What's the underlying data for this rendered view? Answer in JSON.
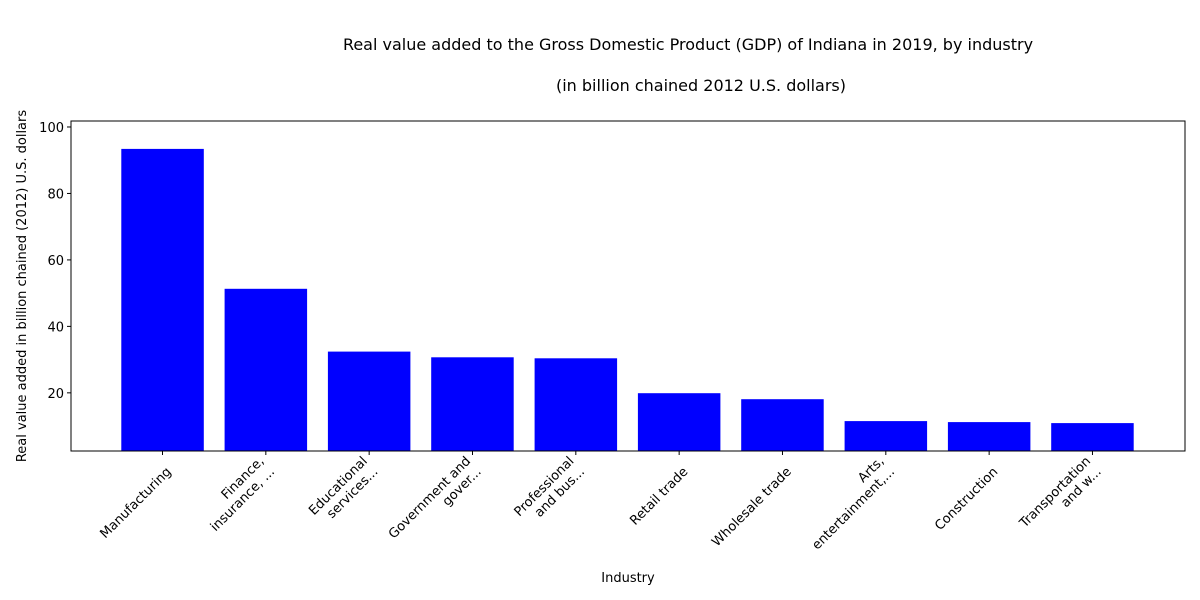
{
  "chart_data": {
    "type": "bar",
    "title": "Real value added to the Gross Domestic Product (GDP) of Indiana in 2019, by industry",
    "subtitle": "(in billion chained 2012 U.S. dollars)",
    "xlabel": "Industry",
    "ylabel": "Real value added in billion chained (2012) U.S. dollars",
    "categories": [
      "Manufacturing",
      "Finance,\ninsurance, ...",
      "Educational\nservices...",
      "Government and\ngover...",
      "Professional\nand bus...",
      "Retail trade",
      "Wholesale trade",
      "Arts,\nentertainment,...",
      "Construction",
      "Transportation\nand w..."
    ],
    "values": [
      93.4,
      51.3,
      32.4,
      30.7,
      30.4,
      19.9,
      18.1,
      11.5,
      11.2,
      10.9
    ],
    "ylim": [
      2.5,
      101.8
    ],
    "yticks": [
      20,
      40,
      60,
      80,
      100
    ],
    "bar_color": "#0000ff",
    "grid": false,
    "legend": "none"
  }
}
